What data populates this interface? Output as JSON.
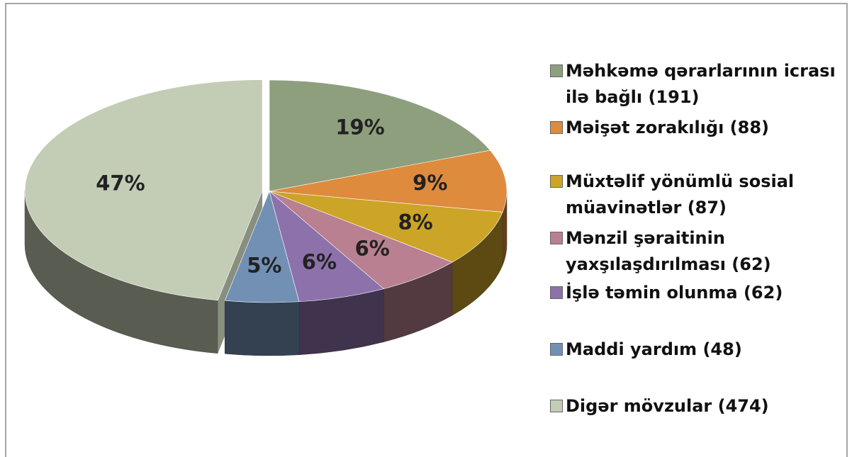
{
  "chart_data": {
    "type": "pie",
    "categories": [
      "Məhkəmə qərarlarının icrası ilə bağlı (191)",
      "Məişət zorakılığı (88)",
      "Müxtəlif yönümlü sosial müavinətlər (87)",
      "Mənzil şəraitinin yaxşılaşdırılması (62)",
      "İşlə təmin olunma (62)",
      "Maddi yardım (48)",
      "Digər mövzular (474)"
    ],
    "values": [
      19,
      9,
      8,
      6,
      6,
      5,
      47
    ],
    "value_labels": [
      "19%",
      "9%",
      "8%",
      "6%",
      "6%",
      "5%",
      "47%"
    ],
    "colors": [
      "#8e9f7e",
      "#de8b3e",
      "#cca427",
      "#b88090",
      "#8c71aa",
      "#7290b4",
      "#c3ccb5"
    ],
    "legend": "right"
  }
}
